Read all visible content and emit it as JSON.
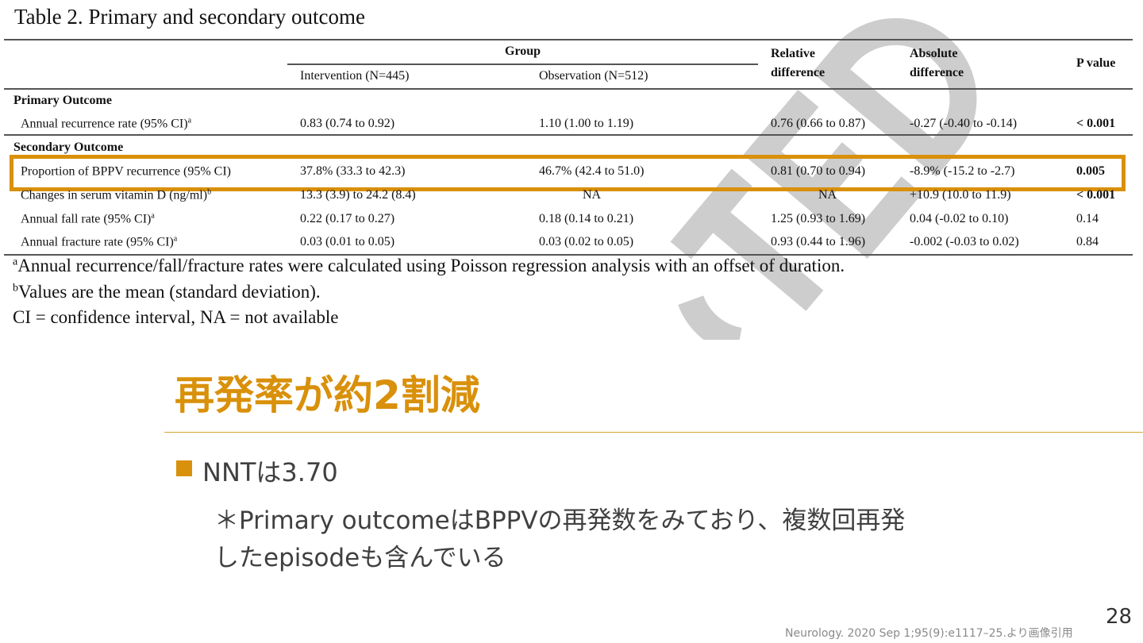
{
  "table": {
    "title": "Table 2. Primary and secondary outcome",
    "header": {
      "group": "Group",
      "intervention": "Intervention (N=445)",
      "observation": "Observation (N=512)",
      "relative": [
        "Relative",
        "difference"
      ],
      "absolute": [
        "Absolute",
        "difference"
      ],
      "pvalue": "P value"
    },
    "sections": {
      "primary": "Primary Outcome",
      "secondary": "Secondary Outcome"
    },
    "rows": [
      {
        "label": "Annual recurrence rate (95% CI)",
        "sup": "a",
        "intervention": "0.83 (0.74 to 0.92)",
        "observation": "1.10 (1.00 to 1.19)",
        "relative": "0.76 (0.66 to 0.87)",
        "absolute": "-0.27 (-0.40 to -0.14)",
        "pvalue": "< 0.001",
        "p_bold": true
      },
      {
        "label": "Proportion of BPPV recurrence (95% CI)",
        "sup": "",
        "intervention": "37.8% (33.3 to 42.3)",
        "observation": "46.7% (42.4 to 51.0)",
        "relative": "0.81 (0.70 to 0.94)",
        "absolute": "-8.9% (-15.2 to -2.7)",
        "pvalue": "0.005",
        "p_bold": true,
        "highlighted": true
      },
      {
        "label": "Changes in serum vitamin D (ng/ml)",
        "sup": "b",
        "intervention": "13.3 (3.9) to 24.2 (8.4)",
        "observation": "NA",
        "relative": "NA",
        "absolute": "+10.9 (10.0 to 11.9)",
        "pvalue": "< 0.001",
        "p_bold": true
      },
      {
        "label": "Annual fall rate (95% CI)",
        "sup": "a",
        "intervention": "0.22 (0.17 to 0.27)",
        "observation": "0.18 (0.14 to 0.21)",
        "relative": "1.25 (0.93 to 1.69)",
        "absolute": "0.04 (-0.02 to 0.10)",
        "pvalue": "0.14",
        "p_bold": false
      },
      {
        "label": "Annual fracture rate (95% CI)",
        "sup": "a",
        "intervention": "0.03 (0.01 to 0.05)",
        "observation": "0.03 (0.02 to 0.05)",
        "relative": "0.93 (0.44 to 1.96)",
        "absolute": "-0.002 (-0.03 to 0.02)",
        "pvalue": "0.84",
        "p_bold": false
      }
    ],
    "footnotes": [
      {
        "sup": "a",
        "text": "Annual recurrence/fall/fracture rates were calculated using Poisson regression analysis with an offset of duration."
      },
      {
        "sup": "b",
        "text": "Values are the mean (standard deviation)."
      },
      {
        "sup": "",
        "text": "CI = confidence interval, NA = not available"
      }
    ],
    "watermark": "TED"
  },
  "slide": {
    "heading": "再発率が約2割減",
    "bullet": "NNTは3.70",
    "note_lines": [
      "＊Primary outcomeはBPPVの再発数をみており、複数回再発",
      "したepisodeも含んでいる"
    ],
    "citation": "Neurology. 2020 Sep 1;95(9):e1117–25.より画像引用",
    "page_number": "28"
  },
  "colors": {
    "accent": "#d9900a",
    "text": "#404040"
  }
}
